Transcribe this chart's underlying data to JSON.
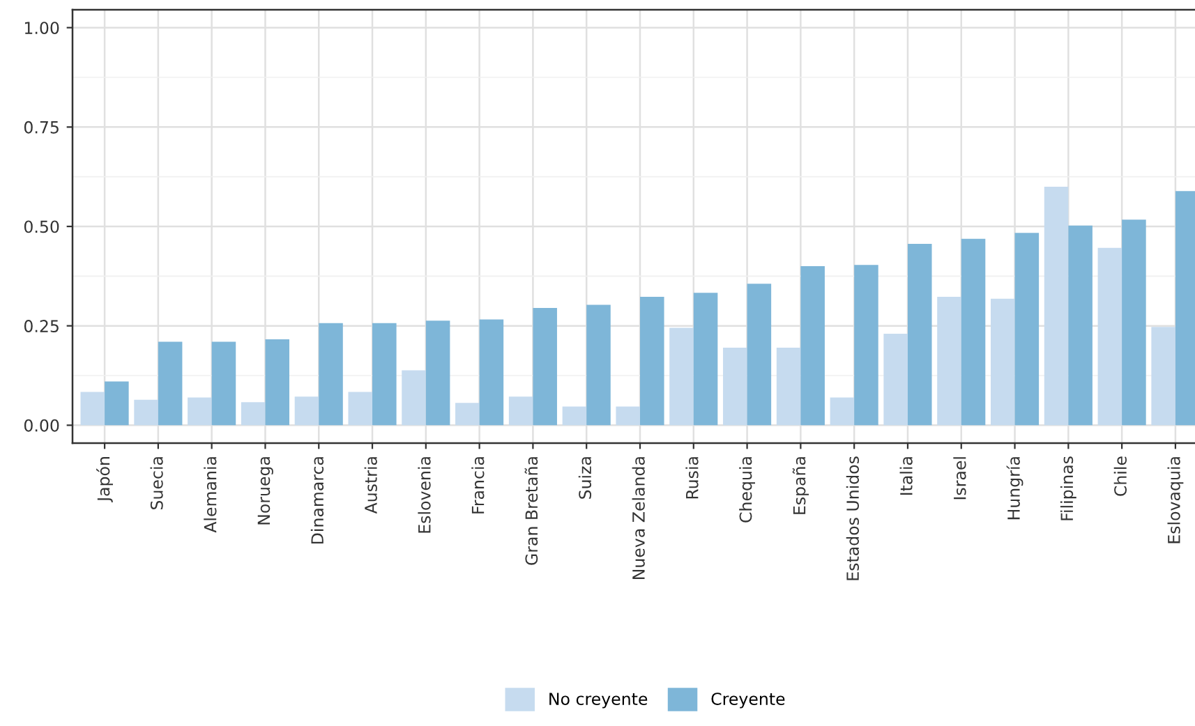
{
  "chart_data": {
    "type": "bar",
    "categories": [
      "Japón",
      "Suecia",
      "Alemania",
      "Noruega",
      "Dinamarca",
      "Austria",
      "Eslovenia",
      "Francia",
      "Gran Bretaña",
      "Suiza",
      "Nueva Zelanda",
      "Rusia",
      "Chequia",
      "España",
      "Estados Unidos",
      "Italia",
      "Israel",
      "Hungría",
      "Filipinas",
      "Chile",
      "Eslovaquia"
    ],
    "series": [
      {
        "name": "No creyente",
        "color": "#c6dbef",
        "values": [
          0.084,
          0.064,
          0.07,
          0.058,
          0.072,
          0.084,
          0.138,
          0.056,
          0.072,
          0.047,
          0.047,
          0.245,
          0.195,
          0.195,
          0.07,
          0.23,
          0.323,
          0.318,
          0.6,
          0.446,
          0.247
        ]
      },
      {
        "name": "Creyente",
        "color": "#7eb6d8",
        "values": [
          0.11,
          0.21,
          0.21,
          0.216,
          0.257,
          0.257,
          0.263,
          0.266,
          0.295,
          0.303,
          0.323,
          0.333,
          0.356,
          0.4,
          0.403,
          0.456,
          0.469,
          0.484,
          0.502,
          0.517,
          0.589
        ]
      }
    ],
    "ylim": [
      -0.045,
      1.045
    ],
    "yticks": [
      {
        "value": 0,
        "label": "0.00"
      },
      {
        "value": 0.25,
        "label": "0.25"
      },
      {
        "value": 0.5,
        "label": "0.50"
      },
      {
        "value": 0.75,
        "label": "0.75"
      },
      {
        "value": 1,
        "label": "1.00"
      }
    ],
    "grid": true,
    "legend": "bottom"
  }
}
